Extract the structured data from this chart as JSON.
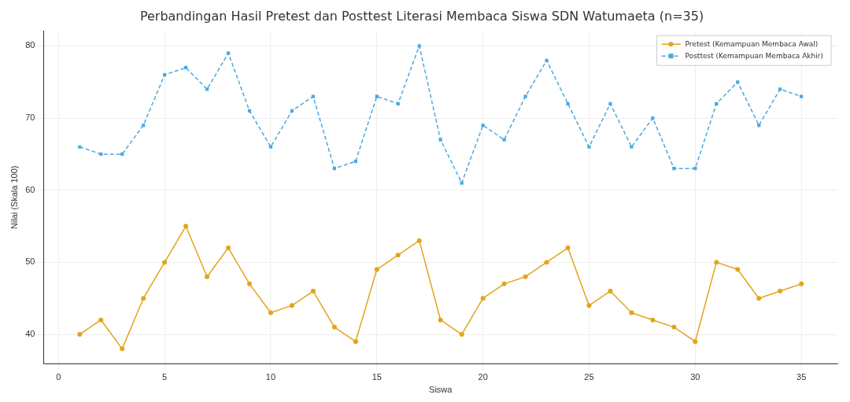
{
  "chart_data": {
    "type": "line",
    "title": "Perbandingan Hasil Pretest dan Posttest Literasi Membaca Siswa SDN Watumaeta (n=35)",
    "xlabel": "Siswa",
    "ylabel": "Nilai (Skala 100)",
    "x": [
      1,
      2,
      3,
      4,
      5,
      6,
      7,
      8,
      9,
      10,
      11,
      12,
      13,
      14,
      15,
      16,
      17,
      18,
      19,
      20,
      21,
      22,
      23,
      24,
      25,
      26,
      27,
      28,
      29,
      30,
      31,
      32,
      33,
      34,
      35
    ],
    "series": [
      {
        "name": "Pretest (Kemampuan Membaca Awal)",
        "color": "#e3a41a",
        "marker": "circle",
        "line_style": "solid",
        "values": [
          40,
          42,
          38,
          45,
          50,
          55,
          48,
          52,
          47,
          43,
          44,
          46,
          41,
          39,
          49,
          51,
          53,
          42,
          40,
          45,
          47,
          48,
          50,
          52,
          44,
          46,
          43,
          42,
          41,
          39,
          50,
          49,
          45,
          46,
          47
        ]
      },
      {
        "name": "Posttest (Kemampuan Membaca Akhir)",
        "color": "#4ba9e0",
        "marker": "square",
        "line_style": "dashed",
        "values": [
          66,
          65,
          65,
          69,
          76,
          77,
          74,
          79,
          71,
          66,
          71,
          73,
          63,
          64,
          73,
          72,
          80,
          67,
          61,
          69,
          67,
          73,
          78,
          72,
          66,
          72,
          66,
          70,
          63,
          63,
          72,
          75,
          69,
          74,
          73
        ]
      }
    ],
    "xlim": [
      -0.7,
      36.7
    ],
    "xticks": [
      0,
      5,
      10,
      15,
      20,
      25,
      30,
      35
    ],
    "ylim": [
      35.9,
      82.1
    ],
    "yticks": [
      40,
      50,
      60,
      70,
      80
    ],
    "grid": true,
    "legend": "top right"
  }
}
